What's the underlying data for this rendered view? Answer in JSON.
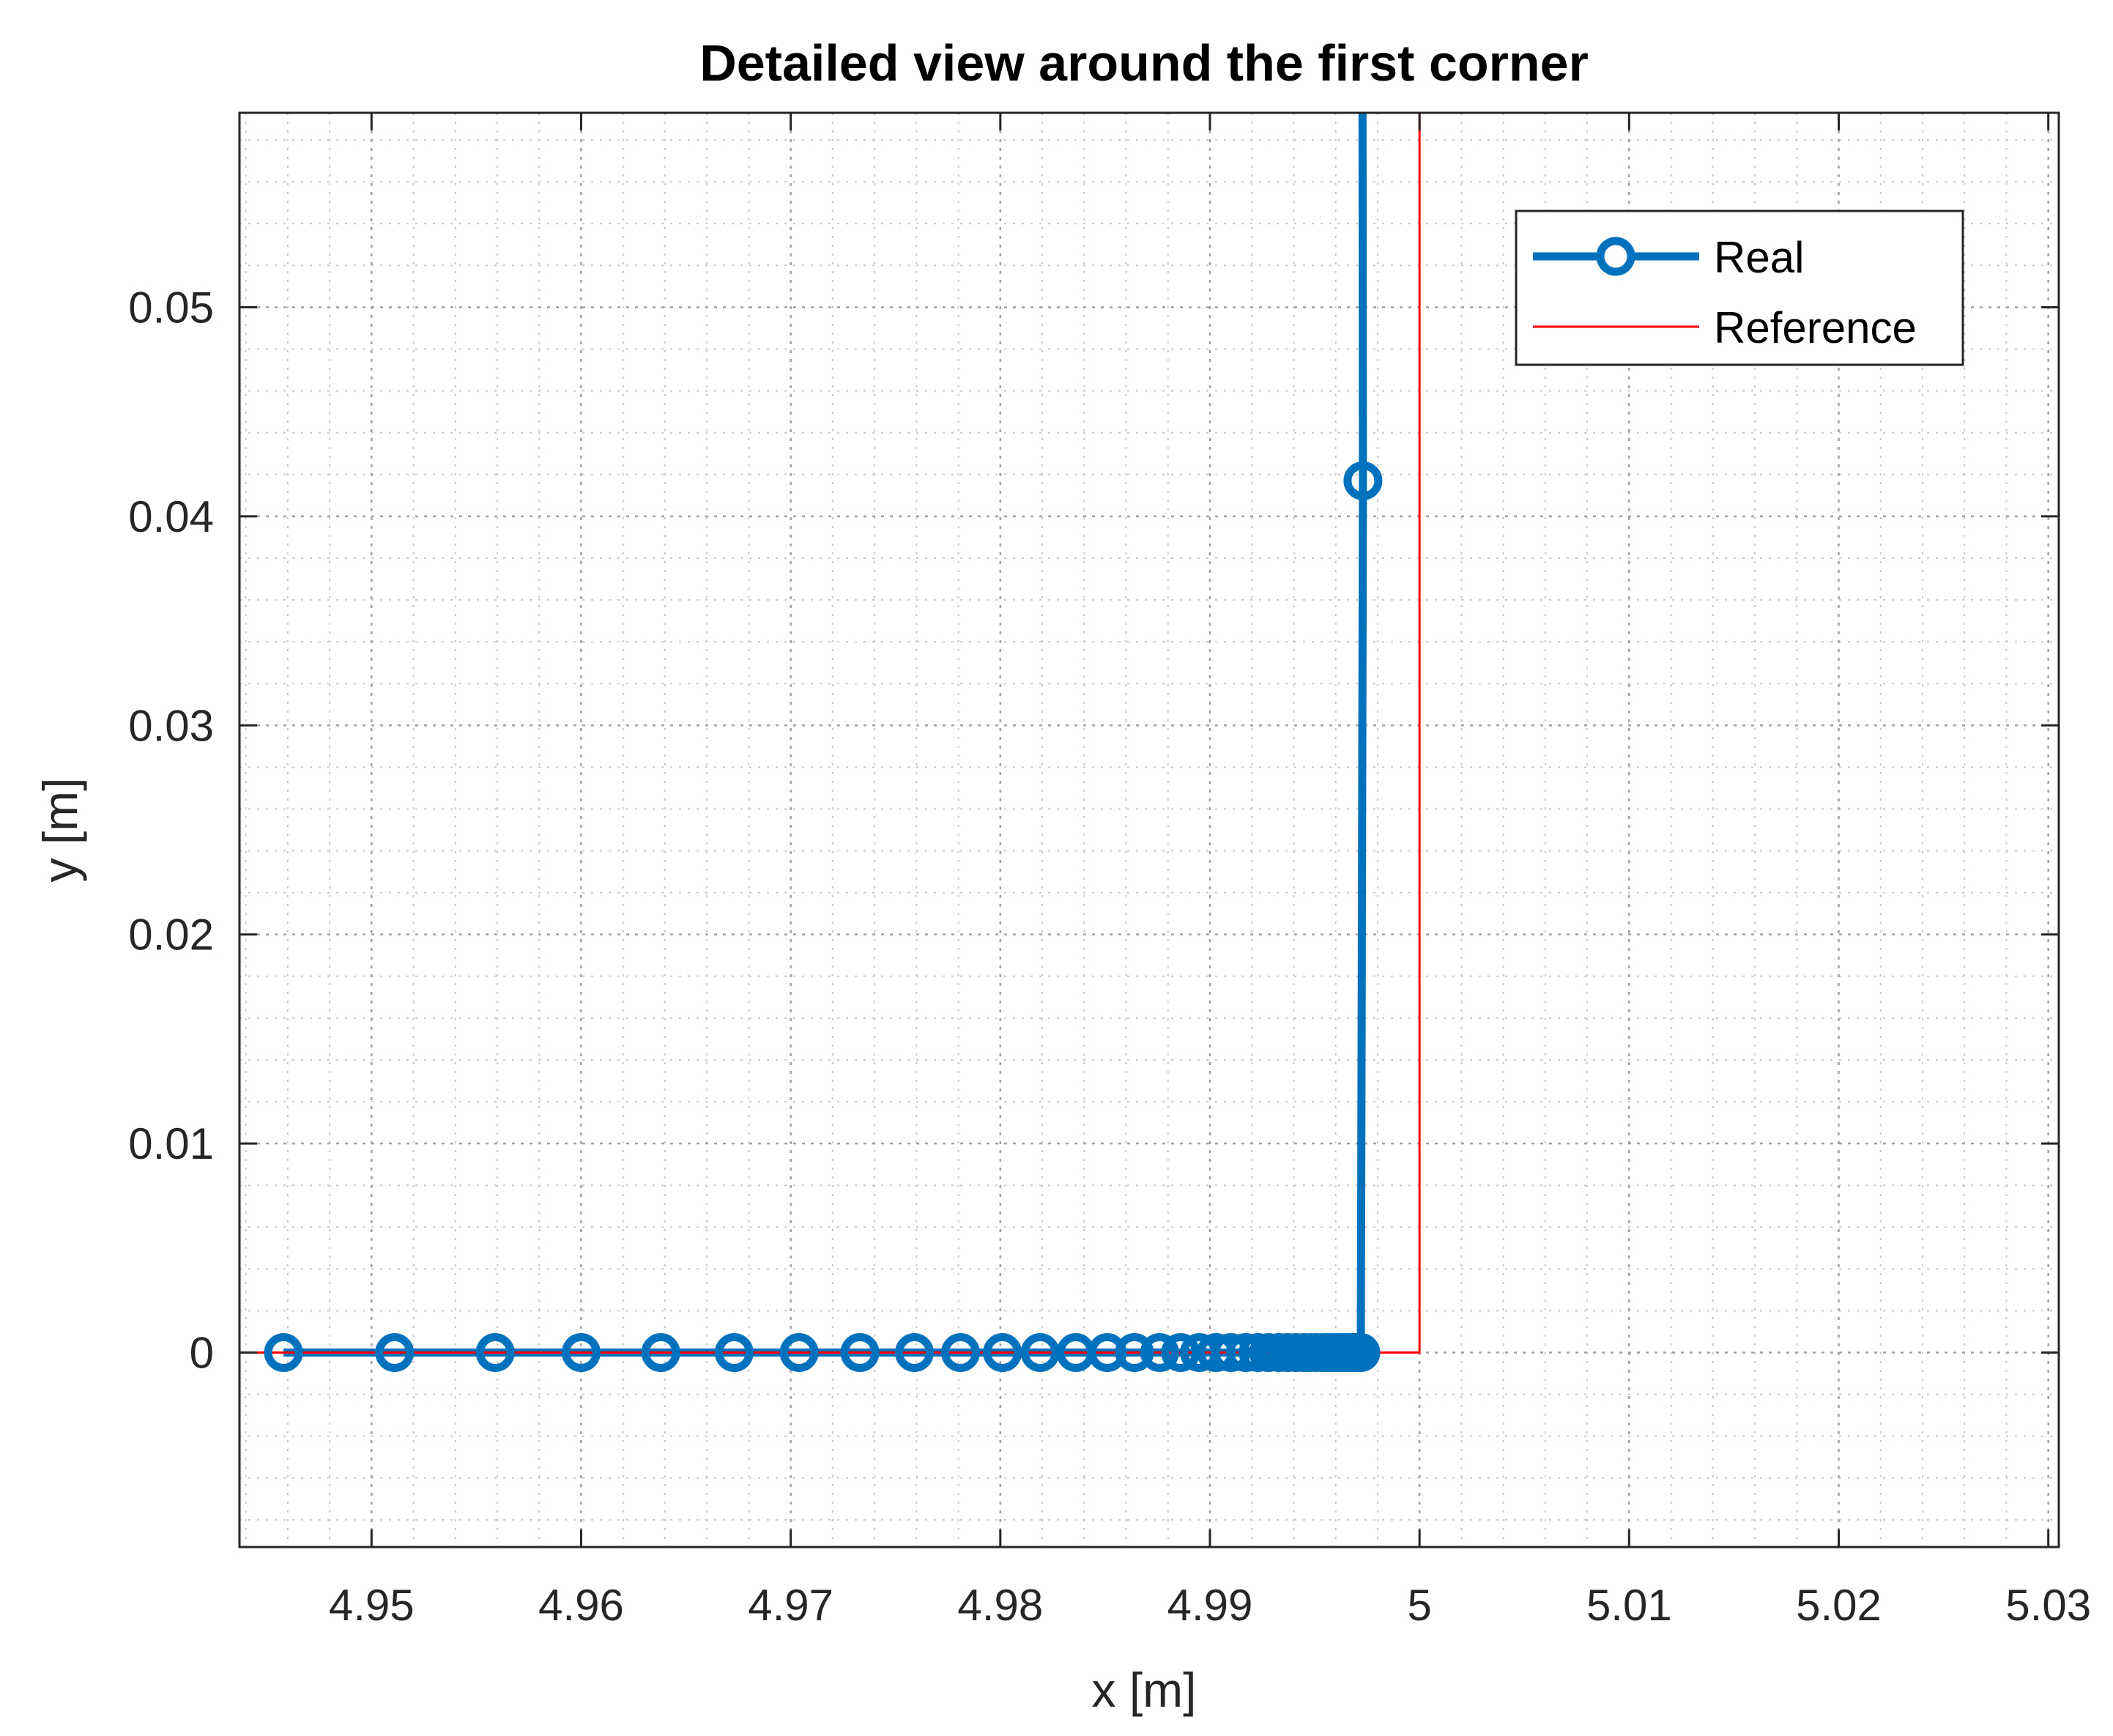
{
  "chart_data": {
    "type": "line",
    "title": "Detailed view around the first corner",
    "xlabel": "x [m]",
    "ylabel": "y [m]",
    "xlim": [
      4.9437,
      5.0305
    ],
    "ylim": [
      -0.0093,
      0.0593
    ],
    "xticks": [
      4.95,
      4.96,
      4.97,
      4.98,
      4.99,
      5,
      5.01,
      5.02,
      5.03
    ],
    "xtick_labels": [
      "4.95",
      "4.96",
      "4.97",
      "4.98",
      "4.99",
      "5",
      "5.01",
      "5.02",
      "5.03"
    ],
    "yticks": [
      0,
      0.01,
      0.02,
      0.03,
      0.04,
      0.05
    ],
    "ytick_labels": [
      "0",
      "0.01",
      "0.02",
      "0.03",
      "0.04",
      "0.05"
    ],
    "grid": true,
    "minor_grid": true,
    "legend_position": "top-right",
    "series": [
      {
        "name": "Real",
        "color": "#0072BD",
        "style": "thick line with circle markers",
        "x": [
          4.9458,
          4.9511,
          4.9559,
          4.96,
          4.9638,
          4.9673,
          4.9704,
          4.9733,
          4.9759,
          4.9781,
          4.9801,
          4.9819,
          4.9836,
          4.9851,
          4.9864,
          4.9876,
          4.9886,
          4.9895,
          4.9903,
          4.991,
          4.9917,
          4.9923,
          4.9928,
          4.9933,
          4.9937,
          4.9941,
          4.9945,
          4.9948,
          4.9951,
          4.9954,
          4.9956,
          4.9958,
          4.996,
          4.9962,
          4.9964,
          4.9966,
          4.9967,
          4.9968,
          4.9969,
          4.997,
          4.9971,
          4.9972,
          4.9973
        ],
        "y": [
          0,
          0,
          0,
          0,
          0,
          0,
          0,
          0,
          0,
          0,
          0,
          0,
          0,
          0,
          0,
          0,
          0,
          0,
          0,
          0,
          0,
          0,
          0,
          0,
          0,
          0,
          0,
          0,
          0,
          0,
          0,
          0,
          0,
          0,
          0,
          0,
          0,
          0,
          0,
          0,
          0,
          0,
          0.0417
        ],
        "extends_to_y": 0.0593
      },
      {
        "name": "Reference",
        "color": "#FF0000",
        "style": "thin line",
        "x": [
          4.9437,
          5.0,
          5.0
        ],
        "y": [
          0,
          0,
          0.0593
        ]
      }
    ]
  }
}
